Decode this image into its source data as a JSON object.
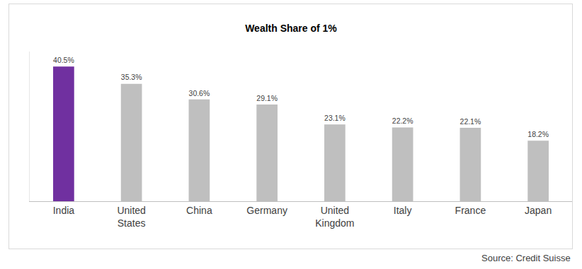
{
  "chart_data": {
    "type": "bar",
    "title": "Wealth Share of 1%",
    "categories": [
      "India",
      "United States",
      "China",
      "Germany",
      "United Kingdom",
      "Italy",
      "France",
      "Japan"
    ],
    "values": [
      40.5,
      35.3,
      30.6,
      29.1,
      23.1,
      22.2,
      22.1,
      18.2
    ],
    "value_labels": [
      "40.5%",
      "35.3%",
      "30.6%",
      "29.1%",
      "23.1%",
      "22.2%",
      "22.1%",
      "18.2%"
    ],
    "colors": [
      "#7030a0",
      "#bfbfbf",
      "#bfbfbf",
      "#bfbfbf",
      "#bfbfbf",
      "#bfbfbf",
      "#bfbfbf",
      "#bfbfbf"
    ],
    "ylim": [
      0,
      45
    ],
    "data_labels": true,
    "tick_labels": "x",
    "grid": false,
    "annotations": [
      "Source: Credit Suisse"
    ]
  }
}
